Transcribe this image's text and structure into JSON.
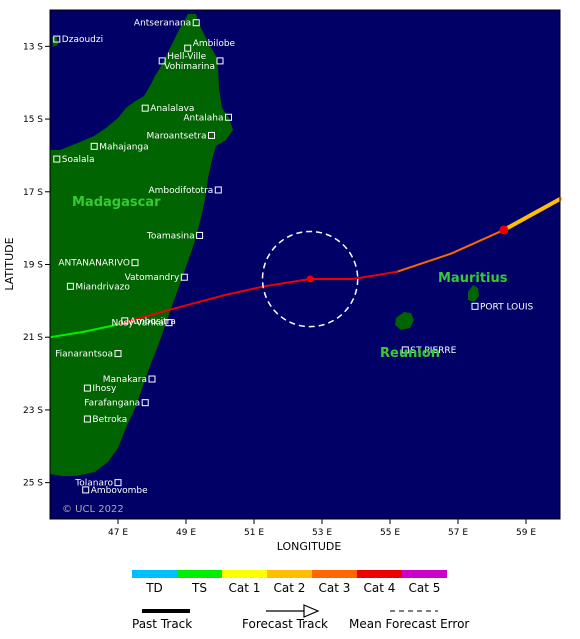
{
  "map": {
    "x_axis_title": "LONGITUDE",
    "y_axis_title": "LATITUDE",
    "copyright": "© UCL 2022",
    "lon_ticks": [
      "47 E",
      "49 E",
      "51 E",
      "53 E",
      "55 E",
      "57 E",
      "59 E"
    ],
    "lat_ticks": [
      "13 S",
      "15 S",
      "17 S",
      "19 S",
      "21 S",
      "23 S",
      "25 S"
    ],
    "lon_range": [
      45,
      60
    ],
    "lat_range": [
      -12,
      -26
    ],
    "colors": {
      "ocean": "#000066",
      "land": "#006400",
      "land_label": "#33cc33",
      "town": "#ffffff",
      "error_circle": "#ffffff"
    }
  },
  "regions": [
    {
      "name": "Madagascar"
    },
    {
      "name": "Mauritius"
    },
    {
      "name": "Reunion"
    }
  ],
  "towns": [
    {
      "name": "Dzaoudzi",
      "lon": 45.2,
      "lat": -12.8
    },
    {
      "name": "Antseranana",
      "lon": 49.3,
      "lat": -12.35
    },
    {
      "name": "Ambilobe",
      "lon": 49.05,
      "lat": -13.05
    },
    {
      "name": "Hell-Ville",
      "lon": 48.3,
      "lat": -13.4
    },
    {
      "name": "Vohimarina",
      "lon": 50.0,
      "lat": -13.4
    },
    {
      "name": "Analalava",
      "lon": 47.8,
      "lat": -14.7
    },
    {
      "name": "Antalaha",
      "lon": 50.25,
      "lat": -14.95
    },
    {
      "name": "Maroantsetra",
      "lon": 49.75,
      "lat": -15.45
    },
    {
      "name": "Mahajanga",
      "lon": 46.3,
      "lat": -15.75
    },
    {
      "name": "Soalala",
      "lon": 45.2,
      "lat": -16.1
    },
    {
      "name": "Ambodifototra",
      "lon": 49.95,
      "lat": -16.95
    },
    {
      "name": "Toamasina",
      "lon": 49.4,
      "lat": -18.2
    },
    {
      "name": "ANTANANARIVO",
      "lon": 47.5,
      "lat": -18.95
    },
    {
      "name": "Vatomandry",
      "lon": 48.95,
      "lat": -19.35
    },
    {
      "name": "Miandrivazo",
      "lon": 45.6,
      "lat": -19.6
    },
    {
      "name": "Ambositra",
      "lon": 47.2,
      "lat": -20.55
    },
    {
      "name": "Nosy-Varika",
      "lon": 48.5,
      "lat": -20.6
    },
    {
      "name": "Fianarantsoa",
      "lon": 47.0,
      "lat": -21.45
    },
    {
      "name": "Manakara",
      "lon": 48.0,
      "lat": -22.15
    },
    {
      "name": "Ihosy",
      "lon": 46.1,
      "lat": -22.4
    },
    {
      "name": "Farafangana",
      "lon": 47.8,
      "lat": -22.8
    },
    {
      "name": "Betroka",
      "lon": 46.1,
      "lat": -23.25
    },
    {
      "name": "Tolanaro",
      "lon": 47.0,
      "lat": -25.0
    },
    {
      "name": "Ambovombe",
      "lon": 46.05,
      "lat": -25.2
    },
    {
      "name": "PORT LOUIS",
      "lon": 57.5,
      "lat": -20.15
    },
    {
      "name": "ST PIERRE",
      "lon": 55.45,
      "lat": -21.35
    }
  ],
  "track": {
    "past_end": {
      "lon": 58.35,
      "lat": -18.05
    },
    "current": {
      "lon": 52.65,
      "lat": -19.4
    },
    "points": [
      {
        "lon": 60.0,
        "lat": -17.2,
        "cat": "Cat 2"
      },
      {
        "lon": 58.35,
        "lat": -18.05,
        "cat": "Cat 4"
      },
      {
        "lon": 56.8,
        "lat": -18.7,
        "cat": "Cat 3"
      },
      {
        "lon": 55.2,
        "lat": -19.2,
        "cat": "Cat 3"
      },
      {
        "lon": 53.9,
        "lat": -19.4,
        "cat": "Cat 4"
      },
      {
        "lon": 52.65,
        "lat": -19.4,
        "cat": "Cat 4"
      },
      {
        "lon": 51.3,
        "lat": -19.6,
        "cat": "Cat 4"
      },
      {
        "lon": 50.1,
        "lat": -19.85,
        "cat": "Cat 4"
      },
      {
        "lon": 48.5,
        "lat": -20.25,
        "cat": "Cat 4"
      },
      {
        "lon": 47.0,
        "lat": -20.65,
        "cat": "Cat 4"
      },
      {
        "lon": 46.0,
        "lat": -20.85,
        "cat": "TS"
      },
      {
        "lon": 45.0,
        "lat": -21.0,
        "cat": "TS"
      }
    ],
    "error_radius_deg": 1.4
  },
  "legend": {
    "categories": [
      {
        "label": "TD",
        "color": "#00bfff"
      },
      {
        "label": "TS",
        "color": "#00ee00"
      },
      {
        "label": "Cat 1",
        "color": "#ffff00"
      },
      {
        "label": "Cat 2",
        "color": "#ffbf00"
      },
      {
        "label": "Cat 3",
        "color": "#ff6600"
      },
      {
        "label": "Cat 4",
        "color": "#ee0000"
      },
      {
        "label": "Cat 5",
        "color": "#cc00cc"
      }
    ],
    "past_track": "Past Track",
    "forecast_track": "Forecast Track",
    "mean_error": "Mean Forecast Error"
  }
}
